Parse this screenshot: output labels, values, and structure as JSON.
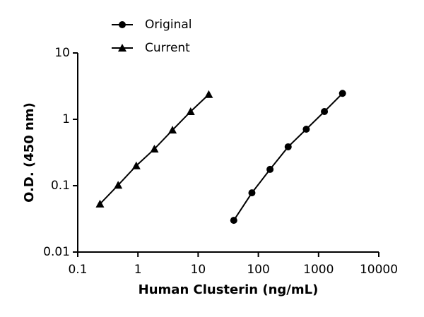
{
  "chart_data": {
    "type": "line",
    "x_label": "Human Clusterin (ng/mL)",
    "y_label": "O.D. (450 nm)",
    "xscale": "log",
    "yscale": "log",
    "xlim": [
      0.1,
      10000
    ],
    "ylim": [
      0.01,
      10
    ],
    "xticks": [
      0.1,
      1,
      10,
      100,
      1000,
      10000
    ],
    "yticks": [
      0.01,
      0.1,
      1,
      10
    ],
    "series": [
      {
        "name": "Original",
        "marker": "circle",
        "color": "#000000",
        "x": [
          39.06,
          78.13,
          156.25,
          312.5,
          625,
          1250,
          2500
        ],
        "values": [
          0.03,
          0.078,
          0.176,
          0.385,
          0.71,
          1.31,
          2.46
        ]
      },
      {
        "name": "Current",
        "marker": "triangle",
        "color": "#000000",
        "x": [
          0.234,
          0.469,
          0.938,
          1.875,
          3.75,
          7.5,
          15
        ],
        "values": [
          0.053,
          0.102,
          0.2,
          0.357,
          0.69,
          1.31,
          2.37
        ]
      }
    ]
  }
}
